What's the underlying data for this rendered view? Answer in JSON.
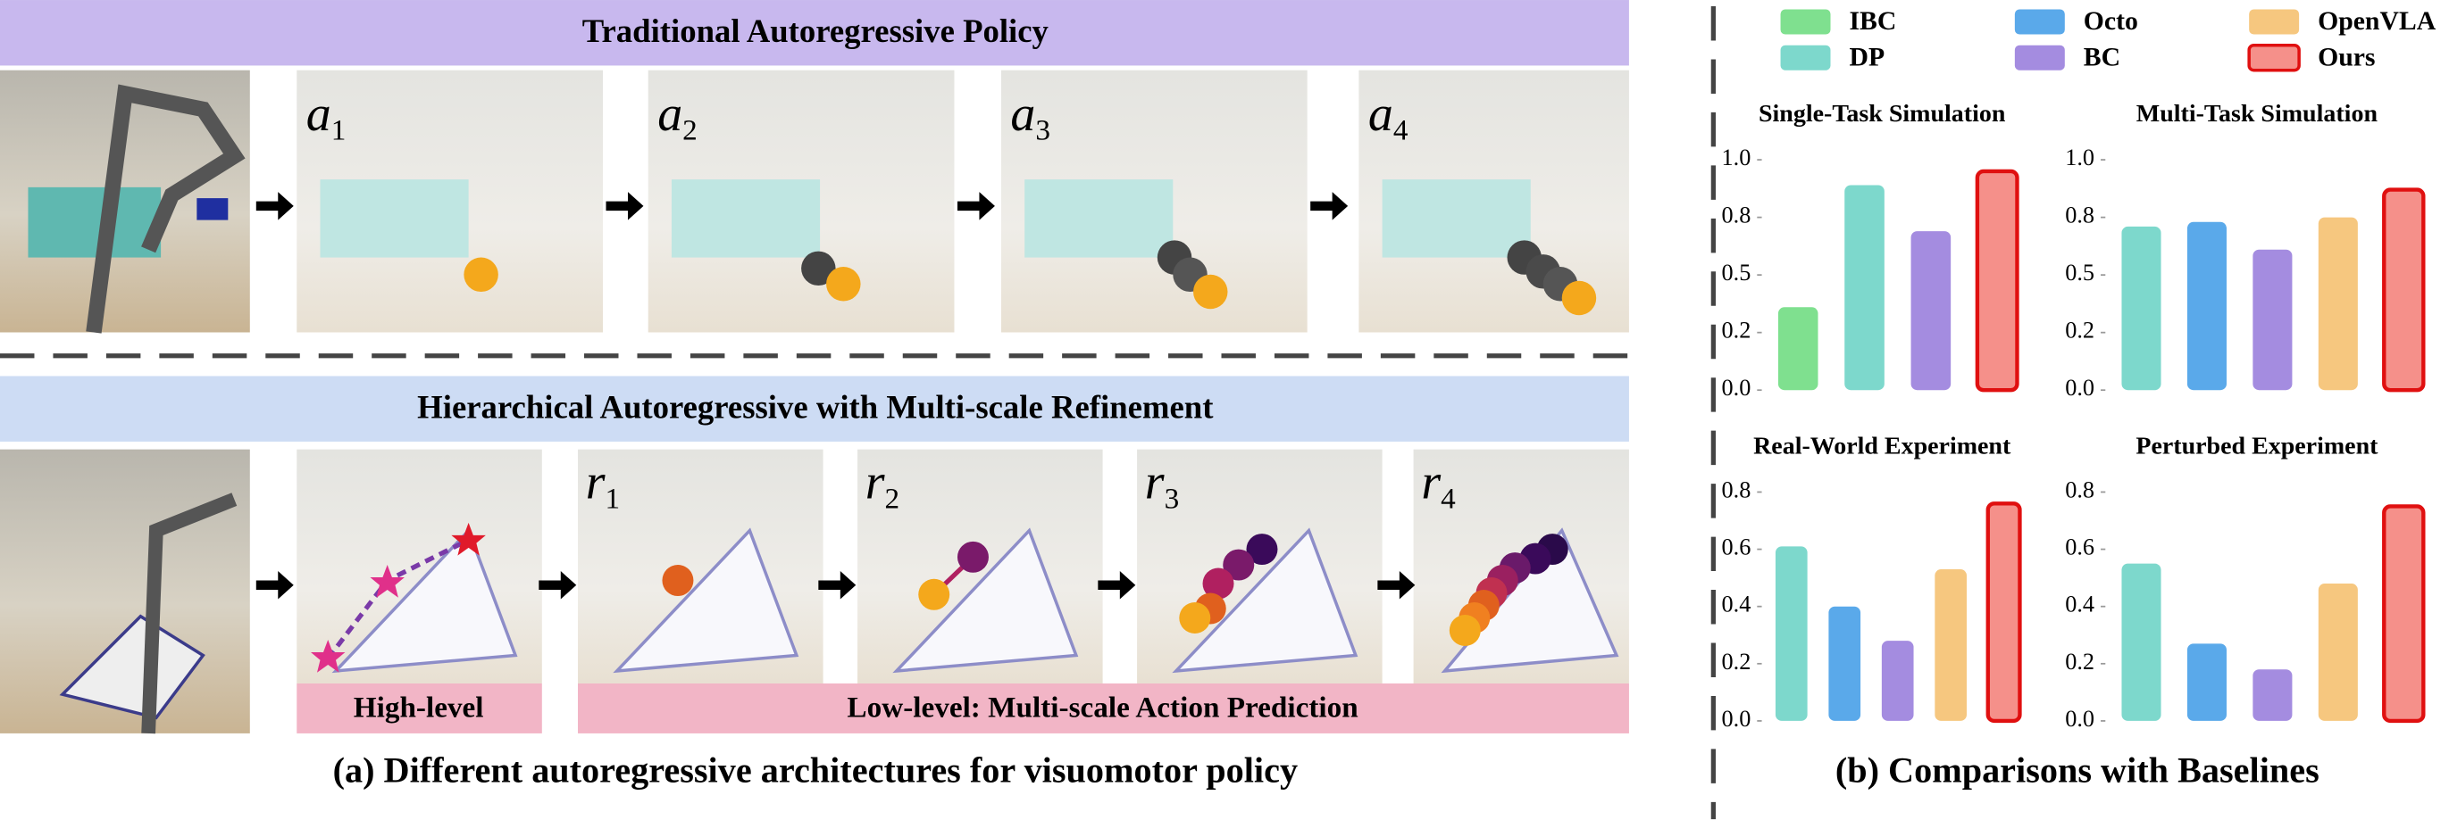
{
  "panel_a": {
    "top_title": "Traditional Autoregressive Policy",
    "top_steps": [
      {
        "letter": "a",
        "sub": "1"
      },
      {
        "letter": "a",
        "sub": "2"
      },
      {
        "letter": "a",
        "sub": "3"
      },
      {
        "letter": "a",
        "sub": "4"
      }
    ],
    "bottom_title": "Hierarchical Autoregressive with Multi-scale Refinement",
    "bottom_steps": [
      {
        "letter": "r",
        "sub": "1"
      },
      {
        "letter": "r",
        "sub": "2"
      },
      {
        "letter": "r",
        "sub": "3"
      },
      {
        "letter": "r",
        "sub": "4"
      }
    ],
    "high_level": "High-level",
    "low_level": "Low-level: Multi-scale Action Prediction",
    "caption": "(a) Different autoregressive architectures for visuomotor policy"
  },
  "panel_b": {
    "caption": "(b) Comparisons with Baselines",
    "legend": [
      {
        "name": "IBC",
        "color": "#7fe08f"
      },
      {
        "name": "DP",
        "color": "#7dd8cc"
      },
      {
        "name": "Octo",
        "color": "#5aa9ea"
      },
      {
        "name": "BC",
        "color": "#a48ce0"
      },
      {
        "name": "OpenVLA",
        "color": "#f6c77f"
      },
      {
        "name": "Ours",
        "color": "#f5908a",
        "edgecolor": "#e01010"
      }
    ]
  },
  "chart_data": [
    {
      "type": "bar",
      "title": "Single-Task Simulation",
      "categories": [
        null,
        null,
        null,
        null
      ],
      "values": [
        0.36,
        0.89,
        0.69,
        0.95
      ],
      "colors": [
        "#7fe08f",
        "#7dd8cc",
        "#a48ce0",
        "#f5908a"
      ],
      "edgecolors": [
        null,
        null,
        null,
        "#e01010"
      ],
      "ylim": [
        0,
        1.05
      ],
      "yticks": [
        {
          "value": 0,
          "label": "0.0"
        },
        {
          "value": 0.25,
          "label": "0.2"
        },
        0.5,
        {
          "value": 0.75,
          "label": "0.8"
        },
        {
          "value": 1.0,
          "label": "1.0"
        }
      ]
    },
    {
      "type": "bar",
      "title": "Multi-Task Simulation",
      "categories": [
        null,
        null,
        null,
        null,
        null
      ],
      "values": [
        0.71,
        0.73,
        0.61,
        0.75,
        0.87
      ],
      "colors": [
        "#7dd8cc",
        "#5aa9ea",
        "#a48ce0",
        "#f6c77f",
        "#f5908a"
      ],
      "edgecolors": [
        null,
        null,
        null,
        null,
        "#e01010"
      ],
      "ylim": [
        0,
        1.05
      ],
      "yticks": [
        {
          "value": 0,
          "label": "0.0"
        },
        {
          "value": 0.25,
          "label": "0.2"
        },
        0.5,
        {
          "value": 0.75,
          "label": "0.8"
        },
        {
          "value": 1.0,
          "label": "1.0"
        }
      ]
    },
    {
      "type": "bar",
      "title": "Real-World Experiment",
      "categories": [
        null,
        null,
        null,
        null,
        null
      ],
      "values": [
        0.61,
        0.4,
        0.28,
        0.53,
        0.76
      ],
      "colors": [
        "#7dd8cc",
        "#5aa9ea",
        "#a48ce0",
        "#f6c77f",
        "#f5908a"
      ],
      "edgecolors": [
        null,
        null,
        null,
        null,
        "#e01010"
      ],
      "ylim": [
        0,
        0.84
      ],
      "yticks": [
        {
          "value": 0,
          "label": "0.0"
        },
        0.2,
        0.4,
        0.6,
        0.8
      ]
    },
    {
      "type": "bar",
      "title": "Perturbed Experiment",
      "categories": [
        null,
        null,
        null,
        null,
        null
      ],
      "values": [
        0.55,
        0.27,
        0.18,
        0.48,
        0.75
      ],
      "colors": [
        "#7dd8cc",
        "#5aa9ea",
        "#a48ce0",
        "#f6c77f",
        "#f5908a"
      ],
      "edgecolors": [
        null,
        null,
        null,
        null,
        "#e01010"
      ],
      "ylim": [
        0,
        0.84
      ],
      "yticks": [
        {
          "value": 0,
          "label": "0.0"
        },
        0.2,
        0.4,
        0.6,
        0.8
      ]
    }
  ]
}
